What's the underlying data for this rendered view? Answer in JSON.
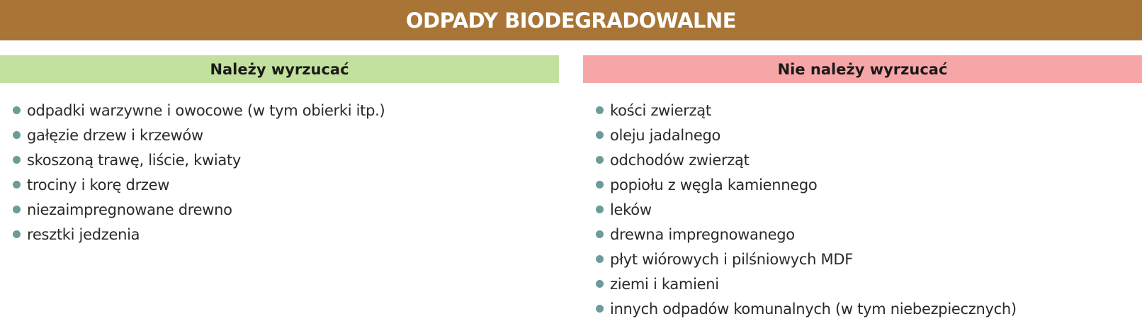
{
  "header": {
    "title": "ODPADY BIODEGRADOWALNE"
  },
  "allowed": {
    "heading": "Należy wyrzucać",
    "items": [
      "odpadki warzywne i owocowe (w tym obierki itp.)",
      "gałęzie drzew i krzewów",
      "skoszoną trawę, liście, kwiaty",
      "trociny i korę drzew",
      "niezaimpregnowane drewno",
      "resztki jedzenia"
    ]
  },
  "forbidden": {
    "heading": "Nie należy wyrzucać",
    "items": [
      "kości zwierząt",
      "oleju jadalnego",
      "odchodów zwierząt",
      "popiołu z węgla kamiennego",
      "leków",
      "drewna impregnowanego",
      "płyt wiórowych i pilśniowych MDF",
      "ziemi i kamieni",
      "innych odpadów komunalnych (w tym niebezpiecznych)"
    ]
  },
  "colors": {
    "header_bg": "#a87536",
    "allowed_bg": "#c3e19e",
    "forbidden_bg": "#f7a6a8",
    "bullet": "#6b9c98"
  }
}
